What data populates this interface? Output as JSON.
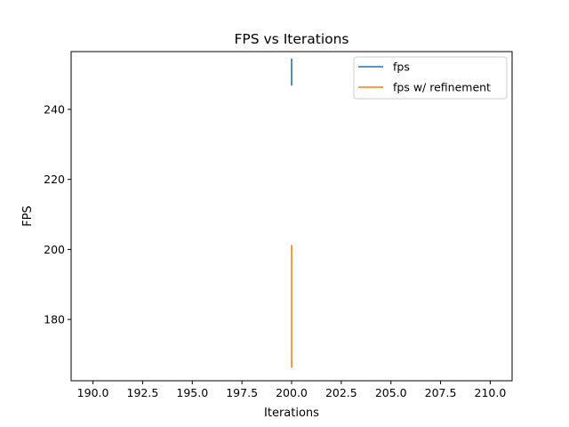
{
  "chart_data": {
    "type": "line",
    "title": "FPS vs Iterations",
    "xlabel": "Iterations",
    "ylabel": "FPS",
    "xlim": [
      188.9,
      211.1
    ],
    "ylim": [
      162.5,
      256.5
    ],
    "xticks": [
      190.0,
      192.5,
      195.0,
      197.5,
      200.0,
      202.5,
      205.0,
      207.5,
      210.0
    ],
    "xtick_labels": [
      "190.0",
      "192.5",
      "195.0",
      "197.5",
      "200.0",
      "202.5",
      "205.0",
      "207.5",
      "210.0"
    ],
    "yticks": [
      180,
      200,
      220,
      240
    ],
    "ytick_labels": [
      "180",
      "200",
      "220",
      "240"
    ],
    "grid": false,
    "legend_position": "top-right",
    "series": [
      {
        "name": "fps",
        "color": "#1f77b4",
        "x": [
          200,
          200
        ],
        "y": [
          246.8,
          254.5
        ]
      },
      {
        "name": "fps w/ refinement",
        "color": "#ff7f0e",
        "x": [
          200,
          200
        ],
        "y": [
          166.2,
          201.3
        ]
      }
    ]
  }
}
